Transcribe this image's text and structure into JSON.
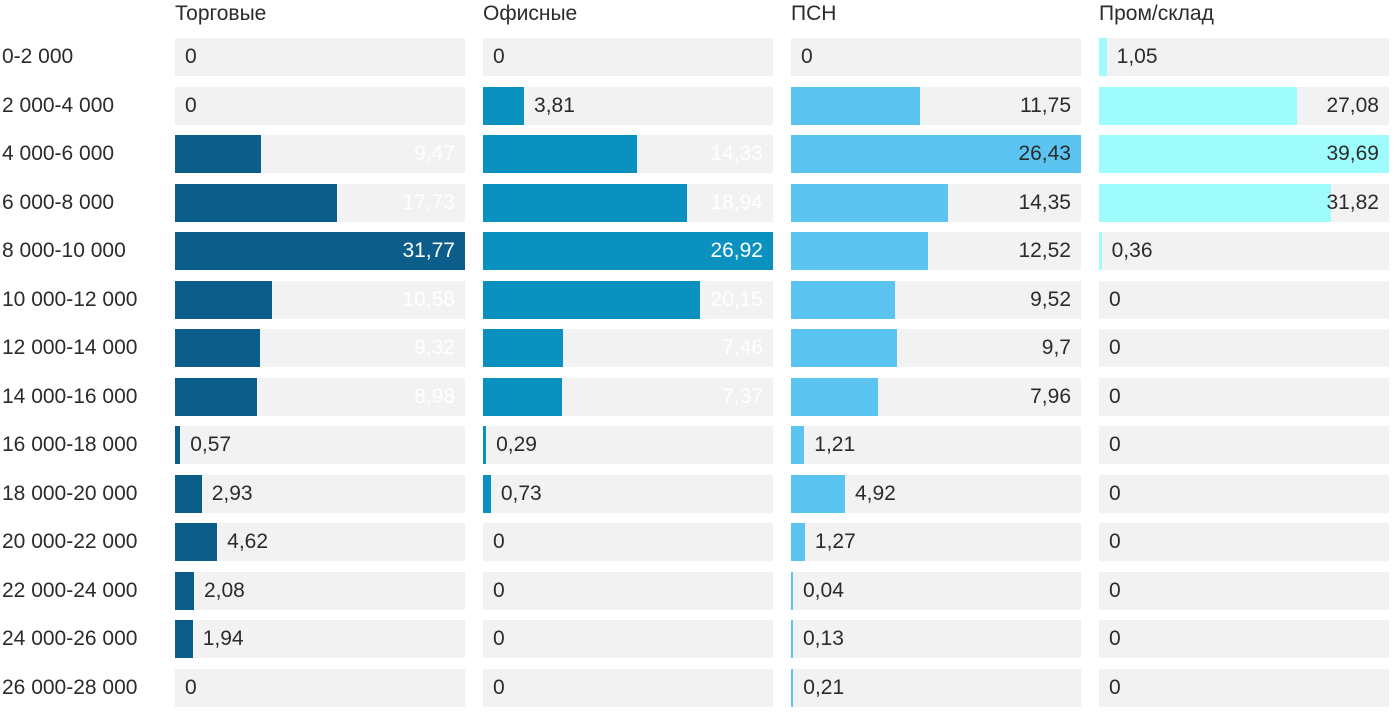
{
  "chart_data": {
    "type": "bar",
    "orientation": "horizontal",
    "title": "",
    "value_format": "decimal-comma",
    "scaling": "per-column-max",
    "grid": false,
    "track_color": "#f2f2f2",
    "text_color": "#2b2b2b",
    "background_color": "#ffffff",
    "categories": [
      "0-2 000",
      "2 000-4 000",
      "4 000-6 000",
      "6 000-8 000",
      "8 000-10 000",
      "10 000-12 000",
      "12 000-14 000",
      "14 000-16 000",
      "16 000-18 000",
      "18 000-20 000",
      "20 000-22 000",
      "22 000-24 000",
      "24 000-26 000",
      "26 000-28 000"
    ],
    "series": [
      {
        "name": "Торговые",
        "color": "#0d5d8b",
        "label_color_inside": "#ffffff",
        "values": [
          0,
          0,
          9.47,
          17.73,
          31.77,
          10.58,
          9.32,
          8.98,
          0.57,
          2.93,
          4.62,
          2.08,
          1.94,
          0
        ],
        "display": [
          "0",
          "0",
          "9,47",
          "17,73",
          "31,77",
          "10,58",
          "9,32",
          "8,98",
          "0,57",
          "2,93",
          "4,62",
          "2,08",
          "1,94",
          "0"
        ]
      },
      {
        "name": "Офисные",
        "color": "#0a91bf",
        "label_color_inside": "#ffffff",
        "values": [
          0,
          3.81,
          14.33,
          18.94,
          26.92,
          20.15,
          7.46,
          7.37,
          0.29,
          0.73,
          0,
          0,
          0,
          0
        ],
        "display": [
          "0",
          "3,81",
          "14,33",
          "18,94",
          "26,92",
          "20,15",
          "7,46",
          "7,37",
          "0,29",
          "0,73",
          "0",
          "0",
          "0",
          "0"
        ]
      },
      {
        "name": "ПСН",
        "color": "#5bc4f0",
        "label_color_inside": "#2b2b2b",
        "values": [
          0,
          11.75,
          26.43,
          14.35,
          12.52,
          9.52,
          9.7,
          7.96,
          1.21,
          4.92,
          1.27,
          0.04,
          0.13,
          0.21
        ],
        "display": [
          "0",
          "11,75",
          "26,43",
          "14,35",
          "12,52",
          "9,52",
          "9,7",
          "7,96",
          "1,21",
          "4,92",
          "1,27",
          "0,04",
          "0,13",
          "0,21"
        ]
      },
      {
        "name": "Пром/склад",
        "color": "#9efcfc",
        "label_color_inside": "#2b2b2b",
        "values": [
          1.05,
          27.08,
          39.69,
          31.82,
          0.36,
          0,
          0,
          0,
          0,
          0,
          0,
          0,
          0,
          0
        ],
        "display": [
          "1,05",
          "27,08",
          "39,69",
          "31,82",
          "0,36",
          "0",
          "0",
          "0",
          "0",
          "0",
          "0",
          "0",
          "0",
          "0"
        ]
      }
    ]
  }
}
